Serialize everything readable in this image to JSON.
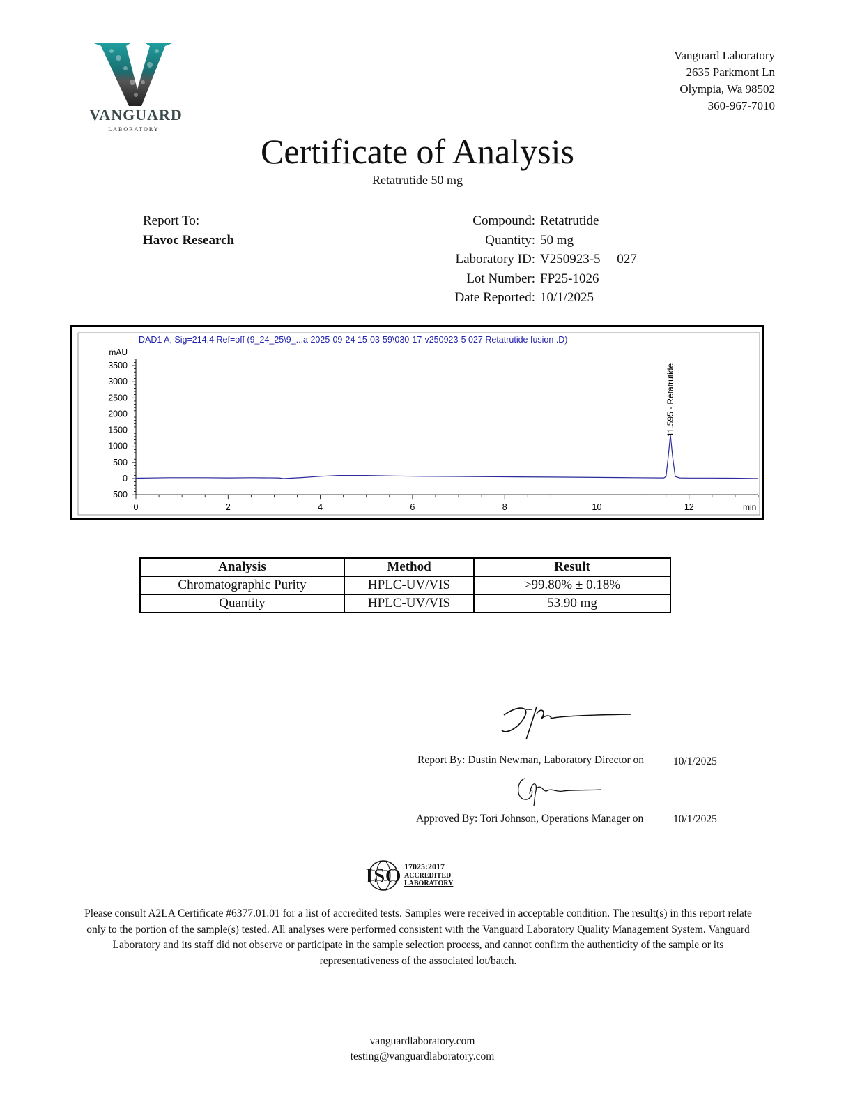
{
  "logo": {
    "wordmark": "VANGUARD",
    "subtext": "LABORATORY",
    "colors": {
      "teal": "#1f9e9e",
      "dark": "#222222",
      "silver": "#9a9a9a"
    }
  },
  "address": {
    "name": "Vanguard Laboratory",
    "street": "2635 Parkmont Ln",
    "city": "Olympia, Wa 98502",
    "phone": "360-967-7010"
  },
  "title": "Certificate of Analysis",
  "subtitle": "Retatrutide 50 mg",
  "report_to": {
    "label": "Report To:",
    "client": "Havoc Research"
  },
  "info": [
    {
      "label": "Compound:",
      "value": "Retatrutide"
    },
    {
      "label": "Quantity:",
      "value": "50 mg"
    },
    {
      "label": "Laboratory ID:",
      "value": "V250923-5     027"
    },
    {
      "label": "Lot Number:",
      "value": "FP25-1026"
    },
    {
      "label": "Date Reported:",
      "value": "10/1/2025"
    }
  ],
  "chart_data": {
    "type": "line",
    "title": "DAD1 A, Sig=214,4 Ref=off (9_24_25\\9_...a 2025-09-24 15-03-59\\030-17-v250923-5 027 Retatrutide fusion .D)",
    "ylabel": "mAU",
    "xlabel": "min",
    "xlim": [
      0,
      13.5
    ],
    "ylim": [
      -500,
      3800
    ],
    "xticks": [
      "0",
      "2",
      "4",
      "6",
      "8",
      "10",
      "12"
    ],
    "yticks": [
      "3500",
      "3000",
      "2500",
      "2000",
      "1500",
      "1000",
      "500",
      "0",
      "-500"
    ],
    "line_color": "#2b2b9a",
    "peak": {
      "rt": 11.595,
      "label": "11.595 -  Retatrutide",
      "height": 1360
    },
    "x": [
      0,
      0.7,
      1.5,
      2.0,
      2.5,
      3.1,
      3.2,
      3.6,
      4.0,
      4.4,
      5.0,
      5.6,
      6.2,
      7.0,
      8.0,
      9.0,
      10.0,
      10.8,
      11.45,
      11.5,
      11.55,
      11.595,
      11.64,
      11.7,
      11.8,
      12.0,
      12.5,
      13.0,
      13.5
    ],
    "y": [
      10,
      25,
      25,
      20,
      25,
      20,
      0,
      30,
      70,
      95,
      95,
      80,
      70,
      65,
      55,
      45,
      35,
      25,
      20,
      60,
      700,
      1360,
      700,
      60,
      20,
      15,
      15,
      10,
      0
    ]
  },
  "results": {
    "headers": [
      "Analysis",
      "Method",
      "Result"
    ],
    "rows": [
      [
        "Chromatographic Purity",
        "HPLC-UV/VIS",
        ">99.80% ± 0.18%"
      ],
      [
        "Quantity",
        "HPLC-UV/VIS",
        "53.90 mg"
      ]
    ]
  },
  "signatures": {
    "report_by": "Report By: Dustin Newman, Laboratory Director on",
    "report_date": "10/1/2025",
    "approved_by": "Approved By: Tori Johnson, Operations Manager on",
    "approved_date": "10/1/2025"
  },
  "iso": {
    "mark": "ISO",
    "standard": "17025:2017",
    "line1": "ACCREDITED",
    "line2": "LABORATORY"
  },
  "disclaimer": "Please consult A2LA Certificate #6377.01.01 for a list of accredited tests. Samples were received in acceptable condition. The result(s) in this report relate only to the portion of the sample(s) tested. All analyses were performed consistent with the Vanguard Laboratory Quality Management System. Vanguard Laboratory and its staff did not observe or participate in the sample selection process, and cannot confirm the authenticity of the sample or its representativeness of the associated lot/batch.",
  "footer": {
    "website": "vanguardlaboratory.com",
    "email": "testing@vanguardlaboratory.com"
  }
}
